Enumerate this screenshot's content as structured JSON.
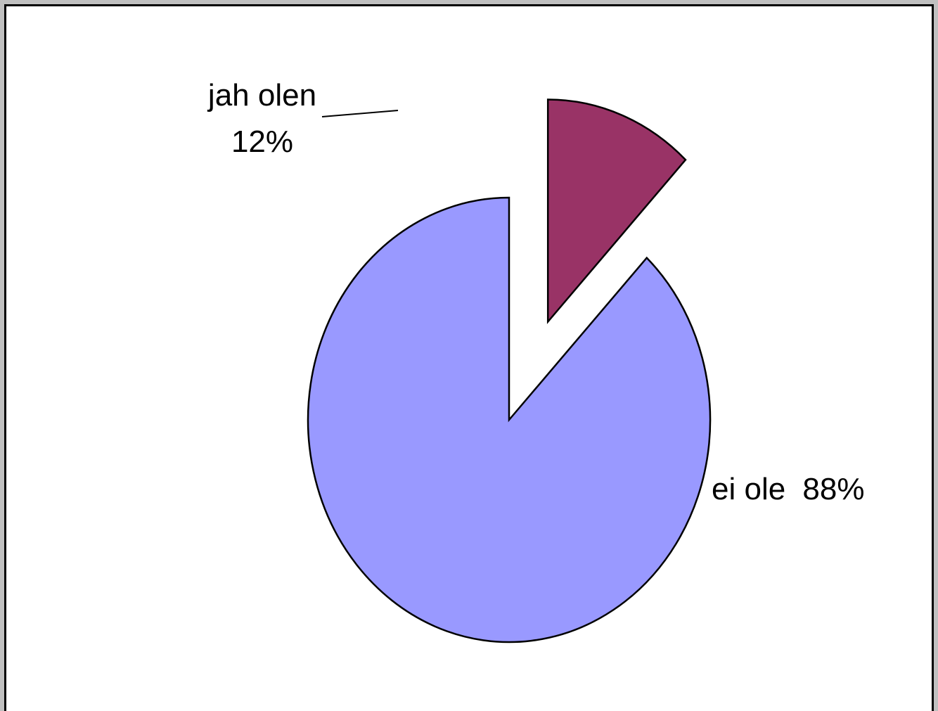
{
  "chart_data": {
    "type": "pie",
    "slices": [
      {
        "label": "jah olen",
        "percent_label": "12%",
        "value": 12,
        "color": "#993366",
        "exploded": true
      },
      {
        "label": "ei ole",
        "percent_label": "88%",
        "value": 88,
        "color": "#9999ff",
        "exploded": false
      }
    ]
  }
}
